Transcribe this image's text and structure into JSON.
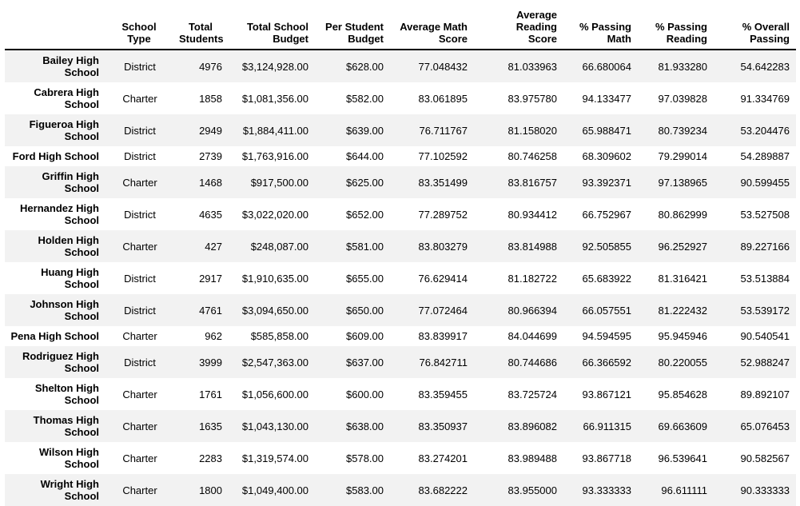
{
  "colors": {
    "background": "#ffffff",
    "row_stripe": "#f2f2f2",
    "header_rule": "#000000",
    "text": "#000000"
  },
  "chart_data": {
    "type": "table",
    "corner_label": "",
    "columns": [
      "School\nType",
      "Total\nStudents",
      "Total School\nBudget",
      "Per Student\nBudget",
      "Average Math\nScore",
      "Average Reading\nScore",
      "% Passing\nMath",
      "% Passing\nReading",
      "% Overall\nPassing"
    ],
    "rows": [
      [
        "Bailey High School",
        "District",
        "4976",
        "$3,124,928.00",
        "$628.00",
        "77.048432",
        "81.033963",
        "66.680064",
        "81.933280",
        "54.642283"
      ],
      [
        "Cabrera High School",
        "Charter",
        "1858",
        "$1,081,356.00",
        "$582.00",
        "83.061895",
        "83.975780",
        "94.133477",
        "97.039828",
        "91.334769"
      ],
      [
        "Figueroa High School",
        "District",
        "2949",
        "$1,884,411.00",
        "$639.00",
        "76.711767",
        "81.158020",
        "65.988471",
        "80.739234",
        "53.204476"
      ],
      [
        "Ford High School",
        "District",
        "2739",
        "$1,763,916.00",
        "$644.00",
        "77.102592",
        "80.746258",
        "68.309602",
        "79.299014",
        "54.289887"
      ],
      [
        "Griffin High School",
        "Charter",
        "1468",
        "$917,500.00",
        "$625.00",
        "83.351499",
        "83.816757",
        "93.392371",
        "97.138965",
        "90.599455"
      ],
      [
        "Hernandez High School",
        "District",
        "4635",
        "$3,022,020.00",
        "$652.00",
        "77.289752",
        "80.934412",
        "66.752967",
        "80.862999",
        "53.527508"
      ],
      [
        "Holden High School",
        "Charter",
        "427",
        "$248,087.00",
        "$581.00",
        "83.803279",
        "83.814988",
        "92.505855",
        "96.252927",
        "89.227166"
      ],
      [
        "Huang High School",
        "District",
        "2917",
        "$1,910,635.00",
        "$655.00",
        "76.629414",
        "81.182722",
        "65.683922",
        "81.316421",
        "53.513884"
      ],
      [
        "Johnson High School",
        "District",
        "4761",
        "$3,094,650.00",
        "$650.00",
        "77.072464",
        "80.966394",
        "66.057551",
        "81.222432",
        "53.539172"
      ],
      [
        "Pena High School",
        "Charter",
        "962",
        "$585,858.00",
        "$609.00",
        "83.839917",
        "84.044699",
        "94.594595",
        "95.945946",
        "90.540541"
      ],
      [
        "Rodriguez High School",
        "District",
        "3999",
        "$2,547,363.00",
        "$637.00",
        "76.842711",
        "80.744686",
        "66.366592",
        "80.220055",
        "52.988247"
      ],
      [
        "Shelton High School",
        "Charter",
        "1761",
        "$1,056,600.00",
        "$600.00",
        "83.359455",
        "83.725724",
        "93.867121",
        "95.854628",
        "89.892107"
      ],
      [
        "Thomas High School",
        "Charter",
        "1635",
        "$1,043,130.00",
        "$638.00",
        "83.350937",
        "83.896082",
        "66.911315",
        "69.663609",
        "65.076453"
      ],
      [
        "Wilson High School",
        "Charter",
        "2283",
        "$1,319,574.00",
        "$578.00",
        "83.274201",
        "83.989488",
        "93.867718",
        "96.539641",
        "90.582567"
      ],
      [
        "Wright High School",
        "Charter",
        "1800",
        "$1,049,400.00",
        "$583.00",
        "83.682222",
        "83.955000",
        "93.333333",
        "96.611111",
        "90.333333"
      ]
    ]
  }
}
